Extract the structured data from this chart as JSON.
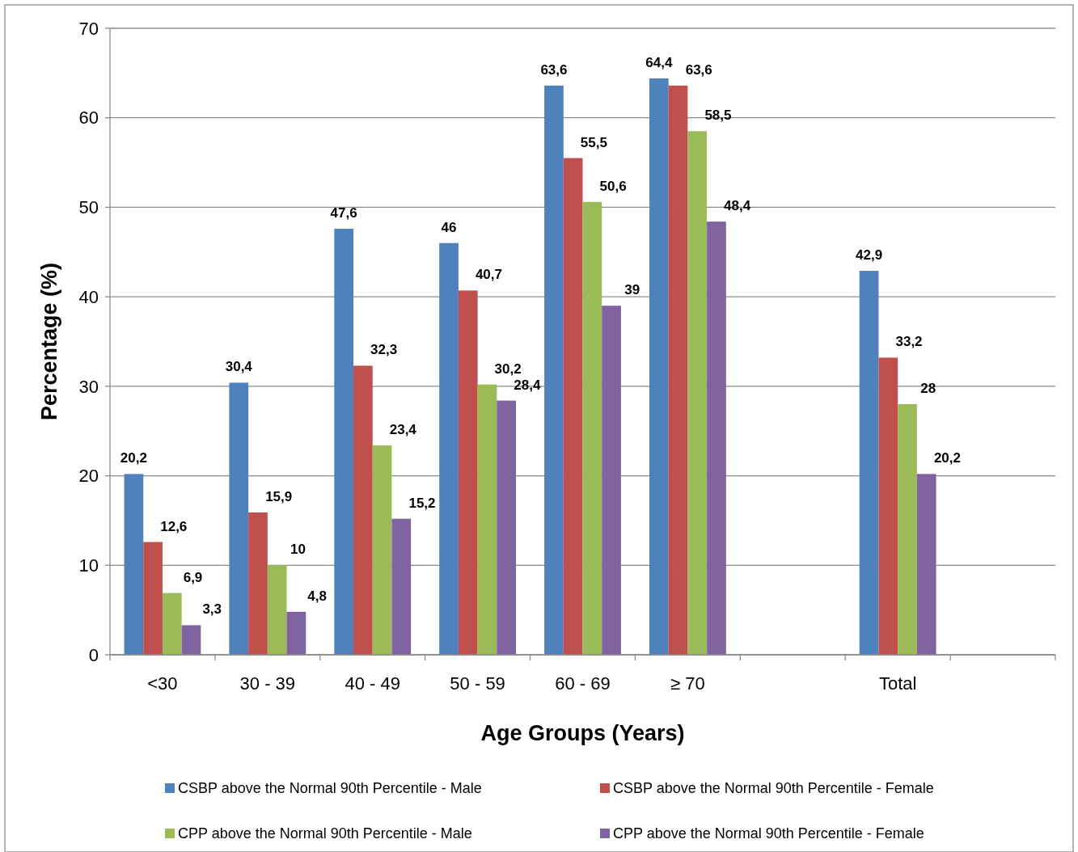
{
  "chart_data": {
    "type": "bar",
    "xlabel": "Age Groups (Years)",
    "ylabel": "Percentage (%)",
    "categories": [
      "<30",
      "30 - 39",
      "40 - 49",
      "50 - 59",
      "60 - 69",
      "≥ 70",
      null,
      "Total",
      null
    ],
    "ylim": [
      0,
      70
    ],
    "yticks": [
      0,
      10,
      20,
      30,
      40,
      50,
      60,
      70
    ],
    "grid": "y",
    "legend": "bottom",
    "series": [
      {
        "name": "CSBP above the Normal 90th Percentile - Male",
        "color": "#4f81bd",
        "values": [
          20.2,
          30.4,
          47.6,
          46,
          63.6,
          64.4,
          null,
          42.9,
          null
        ],
        "value_labels": [
          "20,2",
          "30,4",
          "47,6",
          "46",
          "63,6",
          "64,4",
          null,
          "42,9",
          null
        ]
      },
      {
        "name": "CSBP above the Normal 90th Percentile - Female",
        "color": "#c0504d",
        "values": [
          12.6,
          15.9,
          32.3,
          40.7,
          55.5,
          63.6,
          null,
          33.2,
          null
        ],
        "value_labels": [
          "12,6",
          "15,9",
          "32,3",
          "40,7",
          "55,5",
          "63,6",
          null,
          "33,2",
          null
        ]
      },
      {
        "name": "CPP above the Normal 90th Percentile - Male",
        "color": "#9bbb59",
        "values": [
          6.9,
          10,
          23.4,
          30.2,
          50.6,
          58.5,
          null,
          28,
          null
        ],
        "value_labels": [
          "6,9",
          "10",
          "23,4",
          "30,2",
          "50,6",
          "58,5",
          null,
          "28",
          null
        ]
      },
      {
        "name": "CPP above the Normal 90th Percentile - Female",
        "color": "#8064a2",
        "values": [
          3.3,
          4.8,
          15.2,
          28.4,
          39,
          48.4,
          null,
          20.2,
          null
        ],
        "value_labels": [
          "3,3",
          "4,8",
          "15,2",
          "28,4",
          "39",
          "48,4",
          null,
          "20,2",
          null
        ]
      }
    ]
  }
}
